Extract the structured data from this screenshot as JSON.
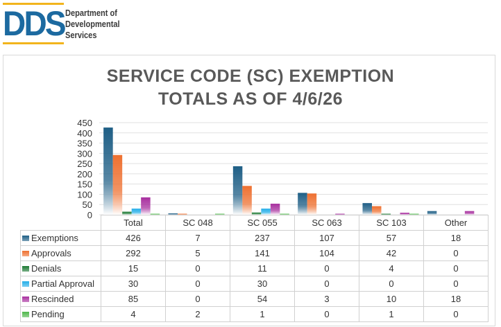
{
  "logo": {
    "mark": "DDS",
    "org": "Department of Developmental Services"
  },
  "chart_data": {
    "type": "bar",
    "title": "SERVICE CODE (SC) EXEMPTION TOTALS AS OF  4/6/26",
    "title_lines": [
      "SERVICE CODE (SC) EXEMPTION",
      "TOTALS AS OF  4/6/26"
    ],
    "categories": [
      "Total",
      "SC 048",
      "SC 055",
      "SC 063",
      "SC 103",
      "Other"
    ],
    "ylim": [
      0,
      450
    ],
    "yticks": [
      0,
      50,
      100,
      150,
      200,
      250,
      300,
      350,
      400,
      450
    ],
    "grid": true,
    "legend": "data-table",
    "series": [
      {
        "name": "Exemptions",
        "color": "#1f5f86",
        "values": [
          426,
          7,
          237,
          107,
          57,
          18
        ]
      },
      {
        "name": "Approvals",
        "color": "#ee7030",
        "values": [
          292,
          5,
          141,
          104,
          42,
          0
        ]
      },
      {
        "name": "Denials",
        "color": "#1e7a34",
        "values": [
          15,
          0,
          11,
          0,
          4,
          0
        ]
      },
      {
        "name": "Partial Approval",
        "color": "#24aee8",
        "values": [
          30,
          0,
          30,
          0,
          0,
          0
        ]
      },
      {
        "name": "Rescinded",
        "color": "#a8309f",
        "values": [
          85,
          0,
          54,
          3,
          10,
          18
        ]
      },
      {
        "name": "Pending",
        "color": "#4fb74a",
        "values": [
          4,
          2,
          1,
          0,
          1,
          0
        ]
      }
    ]
  }
}
